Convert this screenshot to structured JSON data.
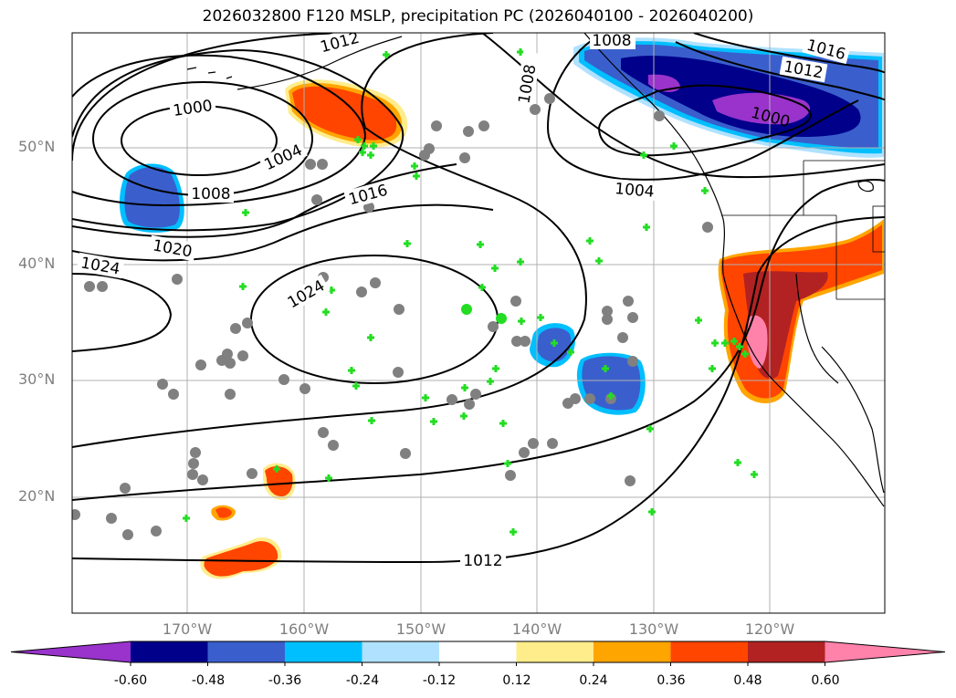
{
  "title": "2026032800 F120 MSLP, precipitation PC (2026040100 - 2026040200)",
  "lat_labels": [
    "50°N",
    "40°N",
    "30°N",
    "20°N"
  ],
  "lon_labels": [
    "170°W",
    "160°W",
    "150°W",
    "140°W",
    "130°W",
    "120°W"
  ],
  "isobar_labels": [
    "1012",
    "1008",
    "1016",
    "1012",
    "1008",
    "1000",
    "1000",
    "1004",
    "1004",
    "1008",
    "1016",
    "1020",
    "1024",
    "1024",
    "1012"
  ],
  "colorbar": {
    "ticks": [
      "-0.60",
      "-0.48",
      "-0.36",
      "-0.24",
      "-0.12",
      "0.12",
      "0.24",
      "0.36",
      "0.48",
      "0.60"
    ],
    "colors": [
      "#9933cc",
      "#00008b",
      "#3a5fcd",
      "#00bfff",
      "#b0e2ff",
      "#ffffff",
      "#ffec8b",
      "#ffa500",
      "#ff4500",
      "#b22222",
      "#ff82ab"
    ]
  }
}
